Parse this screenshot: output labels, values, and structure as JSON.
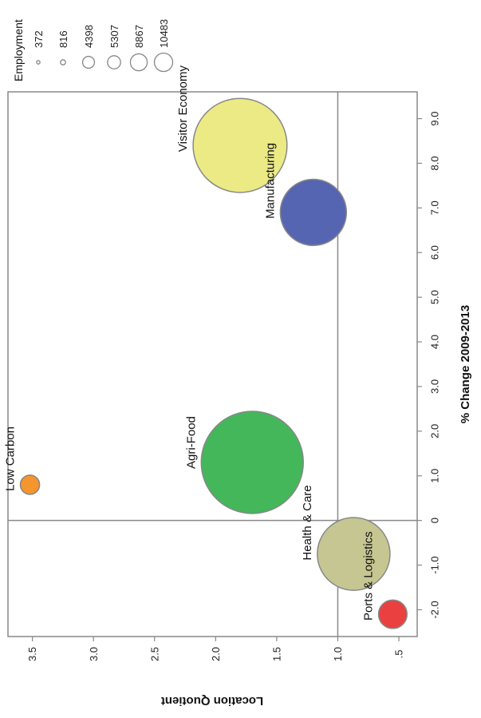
{
  "chart_data": {
    "type": "scatter",
    "title": "",
    "legend": {
      "title": "Employment",
      "items": [
        {
          "label": "372",
          "value": 372
        },
        {
          "label": "816",
          "value": 816
        },
        {
          "label": "4398",
          "value": 4398
        },
        {
          "label": "5307",
          "value": 5307
        },
        {
          "label": "8867",
          "value": 8867
        },
        {
          "label": "10483",
          "value": 10483
        }
      ]
    },
    "x_axis": {
      "label": "% Change 2009-2013",
      "range": [
        -2.6,
        9.6
      ],
      "ticks": [
        {
          "value": -2.0,
          "label": "-2.0"
        },
        {
          "value": -1.0,
          "label": "-1.0"
        },
        {
          "value": 0,
          "label": "0"
        },
        {
          "value": 1.0,
          "label": "1.0"
        },
        {
          "value": 2.0,
          "label": "2.0"
        },
        {
          "value": 3.0,
          "label": "3.0"
        },
        {
          "value": 4.0,
          "label": "4.0"
        },
        {
          "value": 5.0,
          "label": "5.0"
        },
        {
          "value": 6.0,
          "label": "6.0"
        },
        {
          "value": 7.0,
          "label": "7.0"
        },
        {
          "value": 8.0,
          "label": "8.0"
        },
        {
          "value": 9.0,
          "label": "9.0"
        }
      ]
    },
    "y_axis": {
      "label": "Location Quotient",
      "range": [
        0.35,
        3.7
      ],
      "ticks": [
        {
          "value": 0.5,
          "label": ".5"
        },
        {
          "value": 1.0,
          "label": "1.0"
        },
        {
          "value": 1.5,
          "label": "1.5"
        },
        {
          "value": 2.0,
          "label": "2.0"
        },
        {
          "value": 2.5,
          "label": "2.5"
        },
        {
          "value": 3.0,
          "label": "3.0"
        },
        {
          "value": 3.5,
          "label": "3.5"
        }
      ]
    },
    "reference_lines": {
      "x": 0,
      "y": 1.0
    },
    "points": [
      {
        "name": "Visitor Economy",
        "x": 8.4,
        "y": 1.8,
        "employment": 8867,
        "color": "#ecea85"
      },
      {
        "name": "Manufacturing",
        "x": 6.9,
        "y": 1.2,
        "employment": 4398,
        "color": "#5565b2"
      },
      {
        "name": "Agri-Food",
        "x": 1.3,
        "y": 1.7,
        "employment": 10483,
        "color": "#43b75a"
      },
      {
        "name": "Low Carbon",
        "x": 0.8,
        "y": 3.52,
        "employment": 372,
        "color": "#f5952d"
      },
      {
        "name": "Health & Care",
        "x": -0.75,
        "y": 0.87,
        "employment": 5307,
        "color": "#c6c692"
      },
      {
        "name": "Ports & Logistics",
        "x": -2.1,
        "y": 0.55,
        "employment": 816,
        "color": "#ea4040"
      }
    ]
  }
}
